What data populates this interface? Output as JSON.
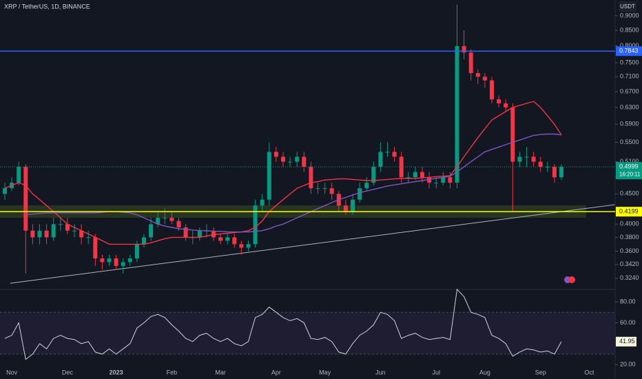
{
  "header": {
    "title": "XRP / TetherUS, 1D, BINANCE",
    "currency": "USDT"
  },
  "chart_data": [
    {
      "type": "candlestick",
      "categories": [
        null,
        "Nov",
        null,
        null,
        null,
        null,
        null,
        null,
        null,
        "Dec",
        null,
        null,
        null,
        null,
        null,
        null,
        "2023",
        null,
        null,
        null,
        null,
        null,
        null,
        null,
        "Feb",
        null,
        null,
        null,
        null,
        null,
        null,
        "Mar",
        null,
        null,
        null,
        null,
        null,
        null,
        null,
        "Apr",
        null,
        null,
        null,
        null,
        null,
        null,
        "May",
        null,
        null,
        null,
        null,
        null,
        null,
        null,
        "Jun",
        null,
        null,
        null,
        null,
        null,
        null,
        null,
        "Jul",
        null,
        null,
        null,
        null,
        null,
        null,
        "Aug",
        null,
        null,
        null,
        null,
        null,
        null,
        null,
        "Sep",
        null,
        null,
        null,
        null,
        null,
        null,
        "Oct"
      ],
      "open": [
        0.45,
        0.46,
        0.47,
        0.5,
        0.39,
        0.38,
        0.39,
        0.38,
        0.4,
        0.4,
        0.39,
        0.39,
        0.38,
        0.38,
        0.35,
        0.345,
        0.35,
        0.34,
        0.345,
        0.35,
        0.37,
        0.38,
        0.4,
        0.41,
        0.41,
        0.405,
        0.395,
        0.38,
        0.38,
        0.39,
        0.39,
        0.38,
        0.375,
        0.38,
        0.37,
        0.365,
        0.37,
        0.43,
        0.44,
        0.53,
        0.52,
        0.51,
        0.51,
        0.52,
        0.5,
        0.46,
        0.46,
        0.46,
        0.45,
        0.43,
        0.42,
        0.44,
        0.46,
        0.47,
        0.5,
        0.53,
        0.53,
        0.52,
        0.48,
        0.48,
        0.49,
        0.48,
        0.47,
        0.47,
        0.48,
        0.47,
        0.8,
        0.78,
        0.72,
        0.71,
        0.7,
        0.65,
        0.64,
        0.63,
        0.51,
        0.52,
        0.52,
        0.51,
        0.5,
        0.5,
        0.48,
        null,
        null,
        null,
        null
      ],
      "high": [
        0.47,
        0.48,
        0.51,
        0.505,
        0.4,
        0.4,
        0.4,
        0.41,
        0.41,
        0.41,
        0.4,
        0.4,
        0.39,
        0.385,
        0.355,
        0.355,
        0.355,
        0.35,
        0.355,
        0.375,
        0.385,
        0.41,
        0.42,
        0.425,
        0.42,
        0.41,
        0.4,
        0.39,
        0.395,
        0.4,
        0.395,
        0.385,
        0.385,
        0.385,
        0.375,
        0.375,
        0.44,
        0.45,
        0.55,
        0.54,
        0.53,
        0.52,
        0.53,
        0.53,
        0.51,
        0.47,
        0.47,
        0.47,
        0.455,
        0.44,
        0.45,
        0.47,
        0.48,
        0.51,
        0.55,
        0.55,
        0.54,
        0.53,
        0.49,
        0.5,
        0.5,
        0.49,
        0.48,
        0.49,
        0.49,
        0.94,
        0.85,
        0.79,
        0.73,
        0.72,
        0.71,
        0.66,
        0.65,
        0.64,
        0.53,
        0.54,
        0.53,
        0.52,
        0.51,
        0.505,
        0.505,
        null,
        null,
        null,
        null
      ],
      "low": [
        0.44,
        0.455,
        0.465,
        0.33,
        0.37,
        0.37,
        0.37,
        0.375,
        0.39,
        0.385,
        0.38,
        0.37,
        0.37,
        0.34,
        0.335,
        0.34,
        0.335,
        0.33,
        0.34,
        0.345,
        0.365,
        0.375,
        0.395,
        0.4,
        0.4,
        0.39,
        0.375,
        0.37,
        0.375,
        0.38,
        0.375,
        0.37,
        0.37,
        0.365,
        0.355,
        0.36,
        0.365,
        0.42,
        0.43,
        0.51,
        0.5,
        0.5,
        0.5,
        0.49,
        0.45,
        0.45,
        0.45,
        0.44,
        0.42,
        0.415,
        0.415,
        0.435,
        0.455,
        0.465,
        0.49,
        0.52,
        0.51,
        0.47,
        0.47,
        0.475,
        0.47,
        0.46,
        0.46,
        0.465,
        0.46,
        0.46,
        0.76,
        0.7,
        0.69,
        0.68,
        0.64,
        0.63,
        0.62,
        0.42,
        0.5,
        0.5,
        0.5,
        0.49,
        0.49,
        0.47,
        0.475,
        null,
        null,
        null,
        null
      ],
      "close": [
        0.46,
        0.47,
        0.5,
        0.39,
        0.38,
        0.39,
        0.38,
        0.4,
        0.4,
        0.39,
        0.39,
        0.38,
        0.38,
        0.35,
        0.345,
        0.35,
        0.34,
        0.345,
        0.35,
        0.37,
        0.38,
        0.4,
        0.41,
        0.41,
        0.405,
        0.395,
        0.38,
        0.38,
        0.39,
        0.39,
        0.38,
        0.375,
        0.38,
        0.37,
        0.365,
        0.37,
        0.43,
        0.44,
        0.53,
        0.52,
        0.51,
        0.51,
        0.52,
        0.5,
        0.46,
        0.46,
        0.46,
        0.45,
        0.43,
        0.42,
        0.44,
        0.46,
        0.47,
        0.5,
        0.53,
        0.53,
        0.52,
        0.48,
        0.48,
        0.49,
        0.48,
        0.47,
        0.47,
        0.48,
        0.47,
        0.8,
        0.78,
        0.72,
        0.71,
        0.7,
        0.65,
        0.64,
        0.63,
        0.51,
        0.52,
        0.52,
        0.51,
        0.5,
        0.5,
        0.48,
        0.4999,
        null,
        null,
        null,
        null
      ],
      "up_color": "#089981",
      "down_color": "#f23645",
      "log_scale": true,
      "ylim": [
        0.317,
        0.957
      ],
      "yticks": [
        {
          "value": 0.324,
          "label": "0.3240"
        },
        {
          "value": 0.342,
          "label": "0.3420"
        },
        {
          "value": 0.36,
          "label": "0.3600"
        },
        {
          "value": 0.38,
          "label": "0.3800"
        },
        {
          "value": 0.4,
          "label": "0.4000"
        },
        {
          "value": 0.45,
          "label": "0.4500"
        },
        {
          "value": 0.48,
          "label": "0.4800"
        },
        {
          "value": 0.51,
          "label": "0.5100"
        },
        {
          "value": 0.55,
          "label": "0.5500"
        },
        {
          "value": 0.59,
          "label": "0.5900"
        },
        {
          "value": 0.63,
          "label": "0.6300"
        },
        {
          "value": 0.67,
          "label": "0.6700"
        },
        {
          "value": 0.71,
          "label": "0.7100"
        },
        {
          "value": 0.75,
          "label": "0.7500"
        },
        {
          "value": 0.8,
          "label": "0.8000"
        },
        {
          "value": 0.85,
          "label": "0.8500"
        },
        {
          "value": 0.9,
          "label": "0.9000"
        }
      ],
      "lines": [
        {
          "color": "#f23645",
          "values": [
            0.46,
            0.465,
            0.47,
            0.465,
            0.45,
            0.44,
            0.43,
            0.42,
            0.41,
            0.4,
            0.395,
            0.39,
            0.385,
            0.38,
            0.375,
            0.37,
            0.37,
            0.37,
            0.37,
            0.37,
            0.37,
            0.372,
            0.375,
            0.378,
            0.38,
            0.38,
            0.38,
            0.38,
            0.38,
            0.382,
            0.384,
            0.385,
            0.386,
            0.387,
            0.388,
            0.39,
            0.395,
            0.405,
            0.42,
            0.43,
            0.44,
            0.45,
            0.46,
            0.465,
            0.47,
            0.472,
            0.475,
            0.476,
            0.477,
            0.477,
            0.476,
            0.475,
            0.474,
            0.474,
            0.475,
            0.476,
            0.477,
            0.478,
            0.478,
            0.478,
            0.479,
            0.48,
            0.481,
            0.482,
            0.483,
            0.5,
            0.52,
            0.54,
            0.56,
            0.58,
            0.6,
            0.61,
            0.62,
            0.63,
            0.635,
            0.64,
            0.645,
            0.63,
            0.61,
            0.59,
            0.566,
            null,
            null,
            null,
            null
          ]
        },
        {
          "color": "#7e57c2",
          "values": [
            null,
            null,
            null,
            0.415,
            0.416,
            0.417,
            0.418,
            0.418,
            0.418,
            0.418,
            0.418,
            0.418,
            0.418,
            0.418,
            0.419,
            0.42,
            0.42,
            0.419,
            0.418,
            0.415,
            0.41,
            0.405,
            0.4,
            0.397,
            0.395,
            0.393,
            0.392,
            0.391,
            0.39,
            0.39,
            0.389,
            0.389,
            0.388,
            0.388,
            0.388,
            0.388,
            0.389,
            0.39,
            0.393,
            0.397,
            0.4,
            0.405,
            0.41,
            0.415,
            0.42,
            0.425,
            0.43,
            0.435,
            0.44,
            0.444,
            0.448,
            0.452,
            0.455,
            0.458,
            0.461,
            0.464,
            0.466,
            0.468,
            0.47,
            0.472,
            0.474,
            0.476,
            0.478,
            0.48,
            0.482,
            0.49,
            0.5,
            0.51,
            0.52,
            0.53,
            0.535,
            0.54,
            0.545,
            0.55,
            0.555,
            0.56,
            0.565,
            0.567,
            0.568,
            0.568,
            0.566,
            null,
            null,
            null,
            null
          ]
        }
      ],
      "hlines": [
        {
          "value": 0.7843,
          "color": "#2962ff"
        },
        {
          "value": 0.4199,
          "color": "#ffff00"
        }
      ],
      "countdown": "16:20:11"
    },
    {
      "type": "line",
      "color": "#d1d4dc",
      "values": [
        45,
        48,
        60,
        25,
        30,
        40,
        35,
        45,
        48,
        45,
        44,
        40,
        42,
        32,
        30,
        35,
        30,
        35,
        40,
        55,
        60,
        66,
        68,
        65,
        58,
        52,
        45,
        42,
        48,
        50,
        45,
        42,
        45,
        40,
        38,
        42,
        65,
        68,
        75,
        70,
        65,
        62,
        64,
        60,
        45,
        44,
        46,
        42,
        32,
        30,
        40,
        48,
        52,
        58,
        70,
        68,
        62,
        45,
        48,
        50,
        46,
        44,
        45,
        46,
        44,
        92,
        85,
        70,
        68,
        65,
        48,
        45,
        40,
        28,
        32,
        35,
        34,
        32,
        33,
        30,
        41.95,
        null,
        null,
        null,
        null
      ],
      "band": [
        30,
        70
      ],
      "ylim": [
        9.5,
        88.6
      ],
      "yticks": [
        {
          "value": 80,
          "label": "80.00"
        },
        {
          "value": 60,
          "label": "60.00"
        },
        {
          "value": 20,
          "label": "20.00"
        }
      ]
    }
  ]
}
